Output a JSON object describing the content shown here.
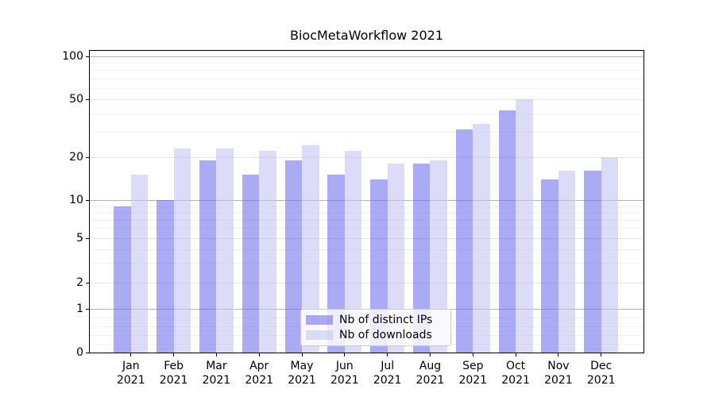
{
  "chart_data": {
    "type": "bar",
    "title": "BiocMetaWorkflow 2021",
    "categories": [
      "Jan 2021",
      "Feb 2021",
      "Mar 2021",
      "Apr 2021",
      "May 2021",
      "Jun 2021",
      "Jul 2021",
      "Aug 2021",
      "Sep 2021",
      "Oct 2021",
      "Nov 2021",
      "Dec 2021"
    ],
    "series": [
      {
        "key": "ips",
        "name": "Nb of distinct IPs",
        "color": "#6464ed",
        "alpha": 0.55,
        "values": [
          9,
          10,
          19,
          15,
          19,
          15,
          14,
          18,
          31,
          42,
          14,
          16
        ]
      },
      {
        "key": "downloads",
        "name": "Nb of downloads",
        "color": "#bfbff2",
        "alpha": 0.55,
        "values": [
          15,
          23,
          23,
          22,
          24,
          22,
          18,
          19,
          34,
          50,
          16,
          20
        ]
      }
    ],
    "yscale": "log-with-zero (symlog)",
    "yticks": [
      0,
      1,
      2,
      5,
      10,
      20,
      50,
      100
    ],
    "ylim": [
      0,
      115
    ],
    "xlabel": "",
    "ylabel": "",
    "grid": true,
    "legend_position": "lower center"
  }
}
